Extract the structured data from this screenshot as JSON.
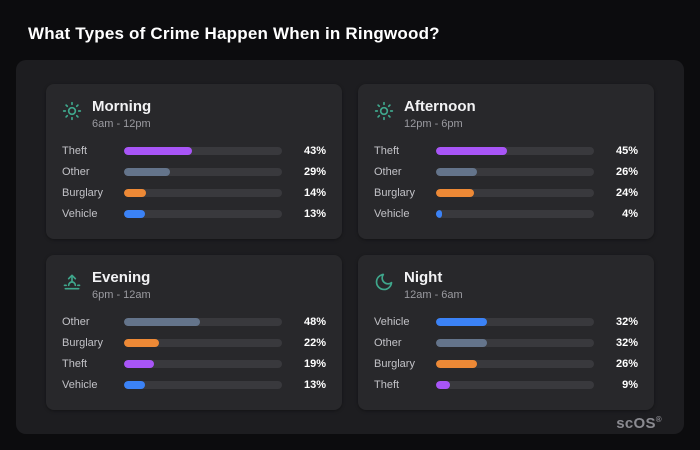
{
  "page": {
    "title": "What Types of Crime Happen When in Ringwood?"
  },
  "brand": {
    "name": "scOS",
    "mark": "®"
  },
  "colors": {
    "background": "#0c0c0e",
    "panel": "#1d1d20",
    "card": "#28282b",
    "bar_track": "#39393d",
    "icon_accent": "#3fa78c",
    "muted_text": "#9b9ba1"
  },
  "series_colors": {
    "Theft": "#a855f7",
    "Other": "#64748b",
    "Burglary": "#ed8936",
    "Vehicle": "#3b82f6"
  },
  "chart_data": [
    {
      "type": "bar",
      "orientation": "horizontal",
      "title": "Morning",
      "subtitle": "6am - 12pm",
      "icon": "sun-icon",
      "categories": [
        "Theft",
        "Other",
        "Burglary",
        "Vehicle"
      ],
      "values": [
        43,
        29,
        14,
        13
      ],
      "value_labels": [
        "43%",
        "29%",
        "14%",
        "13%"
      ],
      "xlim": [
        0,
        100
      ]
    },
    {
      "type": "bar",
      "orientation": "horizontal",
      "title": "Afternoon",
      "subtitle": "12pm - 6pm",
      "icon": "sun-icon",
      "categories": [
        "Theft",
        "Other",
        "Burglary",
        "Vehicle"
      ],
      "values": [
        45,
        26,
        24,
        4
      ],
      "value_labels": [
        "45%",
        "26%",
        "24%",
        "4%"
      ],
      "xlim": [
        0,
        100
      ]
    },
    {
      "type": "bar",
      "orientation": "horizontal",
      "title": "Evening",
      "subtitle": "6pm - 12am",
      "icon": "sunset-icon",
      "categories": [
        "Other",
        "Burglary",
        "Theft",
        "Vehicle"
      ],
      "values": [
        48,
        22,
        19,
        13
      ],
      "value_labels": [
        "48%",
        "22%",
        "19%",
        "13%"
      ],
      "xlim": [
        0,
        100
      ]
    },
    {
      "type": "bar",
      "orientation": "horizontal",
      "title": "Night",
      "subtitle": "12am - 6am",
      "icon": "moon-icon",
      "categories": [
        "Vehicle",
        "Other",
        "Burglary",
        "Theft"
      ],
      "values": [
        32,
        32,
        26,
        9
      ],
      "value_labels": [
        "32%",
        "32%",
        "26%",
        "9%"
      ],
      "xlim": [
        0,
        100
      ]
    }
  ]
}
